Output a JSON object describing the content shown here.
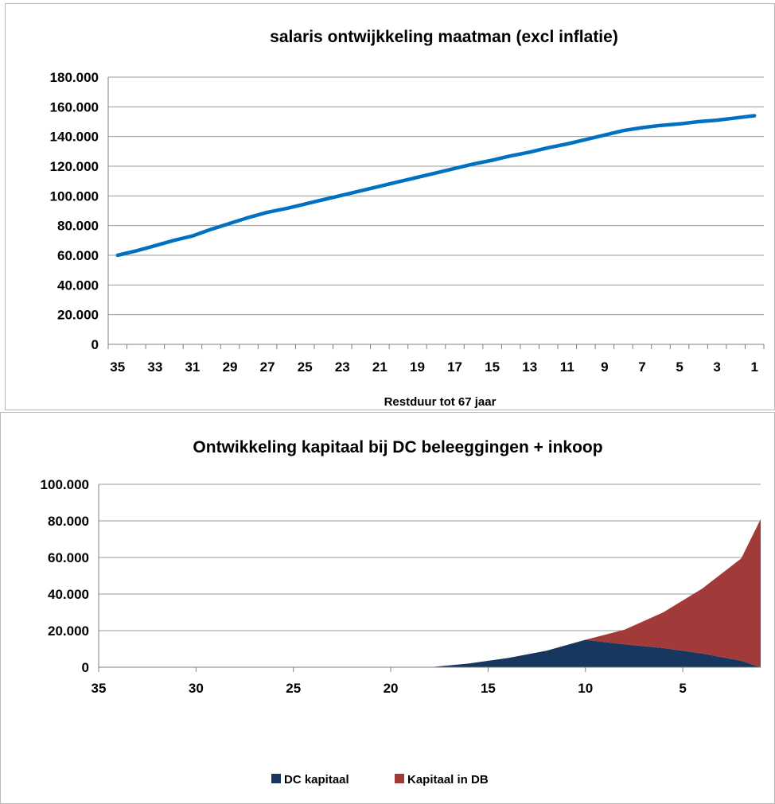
{
  "chart_data": [
    {
      "type": "line",
      "title": "salaris ontwijkkeling maatman (excl inflatie)",
      "xlabel": "Restduur tot 67 jaar",
      "ylabel": "",
      "x": [
        35,
        34,
        33,
        32,
        31,
        30,
        29,
        28,
        27,
        26,
        25,
        24,
        23,
        22,
        21,
        20,
        19,
        18,
        17,
        16,
        15,
        14,
        13,
        12,
        11,
        10,
        9,
        8,
        7,
        6,
        5,
        4,
        3,
        2,
        1
      ],
      "x_ticks": [
        "35",
        "33",
        "31",
        "29",
        "27",
        "25",
        "23",
        "21",
        "19",
        "17",
        "15",
        "13",
        "11",
        "9",
        "7",
        "5",
        "3",
        "1"
      ],
      "series": [
        {
          "values": [
            60000,
            63000,
            66500,
            70000,
            73000,
            77500,
            81500,
            85500,
            89000,
            91500,
            94500,
            97500,
            100500,
            103500,
            106500,
            109500,
            112500,
            115500,
            118500,
            121500,
            124000,
            127000,
            129500,
            132500,
            135000,
            138000,
            141000,
            144000,
            146000,
            147500,
            148500,
            150000,
            151000,
            152500,
            154000
          ],
          "color": "#0070c0"
        }
      ],
      "ylim": [
        0,
        180000
      ],
      "y_ticks": [
        "0",
        "20.000",
        "40.000",
        "60.000",
        "80.000",
        "100.000",
        "120.000",
        "140.000",
        "160.000",
        "180.000"
      ],
      "grid": true
    },
    {
      "type": "area",
      "stacked": true,
      "title": "Ontwikkeling kapitaal bij DC beleeggingen + inkoop",
      "xlabel": "",
      "ylabel": "",
      "x": [
        35,
        30,
        25,
        20,
        18,
        16,
        14,
        12,
        10,
        8,
        6,
        4,
        2,
        1
      ],
      "series": [
        {
          "name": "DC kapitaal",
          "color": "#17375e",
          "values": [
            0,
            0,
            0,
            0,
            0,
            2000,
            5000,
            9000,
            15000,
            12500,
            10500,
            7500,
            3500,
            0
          ]
        },
        {
          "name": "Kapitaal in DB",
          "color": "#a33a3a",
          "values": [
            0,
            0,
            0,
            0,
            0,
            0,
            0,
            0,
            0,
            8000,
            19500,
            35500,
            56000,
            81000
          ]
        }
      ],
      "ylim": [
        0,
        100000
      ],
      "xlim": [
        35,
        1
      ],
      "x_ticks": [
        "35",
        "30",
        "25",
        "20",
        "15",
        "10",
        "5"
      ],
      "y_ticks": [
        "0",
        "20.000",
        "40.000",
        "60.000",
        "80.000",
        "100.000"
      ],
      "grid": true,
      "legend": "bottom"
    }
  ]
}
